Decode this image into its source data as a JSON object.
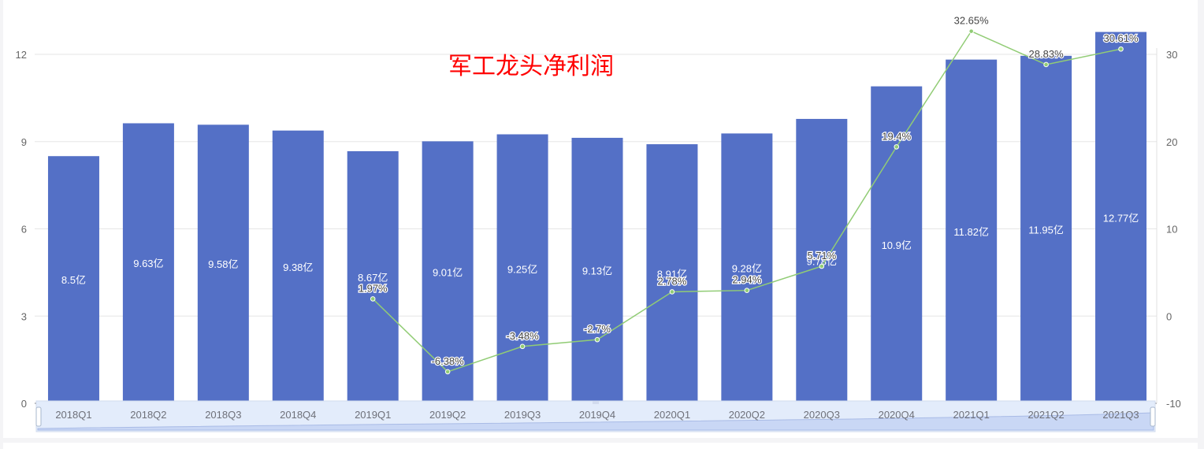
{
  "chart_data": {
    "type": "bar",
    "title": "军工龙头净利润",
    "categories": [
      "2018Q1",
      "2018Q2",
      "2018Q3",
      "2018Q4",
      "2019Q1",
      "2019Q2",
      "2019Q3",
      "2019Q4",
      "2020Q1",
      "2020Q2",
      "2020Q3",
      "2020Q4",
      "2021Q1",
      "2021Q2",
      "2021Q3"
    ],
    "series": [
      {
        "type": "bar",
        "axis": "left",
        "values": [
          8.5,
          9.63,
          9.58,
          9.38,
          8.67,
          9.01,
          9.25,
          9.13,
          8.91,
          9.28,
          9.78,
          10.9,
          11.82,
          11.95,
          12.77
        ],
        "labels": [
          "8.5亿",
          "9.63亿",
          "9.58亿",
          "9.38亿",
          "8.67亿",
          "9.01亿",
          "9.25亿",
          "9.13亿",
          "8.91亿",
          "9.28亿",
          "9.78亿",
          "10.9亿",
          "11.82亿",
          "11.95亿",
          "12.77亿"
        ],
        "color": "#5470c6"
      },
      {
        "type": "line",
        "axis": "right",
        "values": [
          null,
          null,
          null,
          null,
          1.97,
          -6.38,
          -3.48,
          -2.7,
          2.78,
          2.94,
          5.71,
          19.4,
          32.65,
          28.83,
          30.61
        ],
        "labels": [
          "",
          "",
          "",
          "",
          "1.97%",
          "-6.38%",
          "-3.48%",
          "-2.7%",
          "2.78%",
          "2.94%",
          "5.71%",
          "19.4%",
          "32.65%",
          "28.83%",
          "30.61%"
        ],
        "color": "#91cc75"
      }
    ],
    "y_left": {
      "min": 0,
      "max": 12,
      "ticks": [
        0,
        3,
        6,
        9,
        12
      ]
    },
    "y_right": {
      "min": -10,
      "max": 30,
      "ticks": [
        -10,
        0,
        10,
        20,
        30
      ]
    },
    "title_color": "#ff0000",
    "grid": true,
    "datazoom": true
  }
}
